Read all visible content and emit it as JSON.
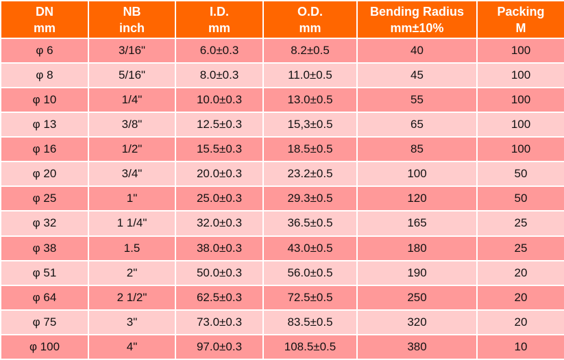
{
  "table": {
    "header": [
      [
        "DN",
        "mm"
      ],
      [
        "NB",
        "inch"
      ],
      [
        "I.D.",
        "mm"
      ],
      [
        "O.D.",
        "mm"
      ],
      [
        "Bending Radius",
        "mm±10%"
      ],
      [
        "Packing",
        "M"
      ]
    ],
    "rows": [
      [
        "φ 6",
        "3/16\"",
        "6.0±0.3",
        "8.2±0.5",
        "40",
        "100"
      ],
      [
        "φ 8",
        "5/16\"",
        "8.0±0.3",
        "11.0±0.5",
        "45",
        "100"
      ],
      [
        "φ 10",
        "1/4\"",
        "10.0±0.3",
        "13.0±0.5",
        "55",
        "100"
      ],
      [
        "φ 13",
        "3/8\"",
        "12.5±0.3",
        "15,3±0.5",
        "65",
        "100"
      ],
      [
        "φ 16",
        "1/2\"",
        "15.5±0.3",
        "18.5±0.5",
        "85",
        "100"
      ],
      [
        "φ 20",
        "3/4\"",
        "20.0±0.3",
        "23.2±0.5",
        "100",
        "50"
      ],
      [
        "φ 25",
        "1\"",
        "25.0±0.3",
        "29.3±0.5",
        "120",
        "50"
      ],
      [
        "φ 32",
        "1 1/4\"",
        "32.0±0.3",
        "36.5±0.5",
        "165",
        "25"
      ],
      [
        "φ 38",
        "1.5",
        "38.0±0.3",
        "43.0±0.5",
        "180",
        "25"
      ],
      [
        "φ 51",
        "2\"",
        "50.0±0.3",
        "56.0±0.5",
        "190",
        "20"
      ],
      [
        "φ 64",
        "2 1/2\"",
        "62.5±0.3",
        "72.5±0.5",
        "250",
        "20"
      ],
      [
        "φ 75",
        "3\"",
        "73.0±0.3",
        "83.5±0.5",
        "320",
        "20"
      ],
      [
        "φ 100",
        "4\"",
        "97.0±0.3",
        "108.5±0.5",
        "380",
        "10"
      ]
    ]
  }
}
